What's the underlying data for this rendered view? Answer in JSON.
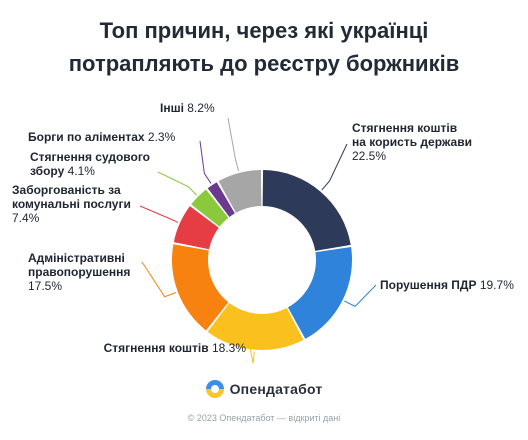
{
  "chart_data": {
    "type": "pie",
    "title_lines": [
      "Топ причин, через які українці",
      "потрапляють до реєстру боржників"
    ],
    "slices": [
      {
        "label_lines": [
          "Стягнення коштів",
          "на користь держави"
        ],
        "value_text": "22.5%",
        "value": 22.5,
        "color": "#2d3a5a"
      },
      {
        "label_lines": [
          "Порушення ПДР"
        ],
        "value_text": "19.7%",
        "value": 19.7,
        "color": "#2f83db"
      },
      {
        "label_lines": [
          "Стягнення коштів"
        ],
        "value_text": "18.3%",
        "value": 18.3,
        "color": "#f9c01e"
      },
      {
        "label_lines": [
          "Адміністративні",
          "правопорушення"
        ],
        "value_text": "17.5%",
        "value": 17.5,
        "color": "#f7820f"
      },
      {
        "label_lines": [
          "Заборгованість за",
          "комунальні послуги"
        ],
        "value_text": "7.4%",
        "value": 7.4,
        "color": "#e63c44"
      },
      {
        "label_lines": [
          "Стягнення судового",
          "збору"
        ],
        "value_text": "4.1%",
        "value": 4.1,
        "color": "#8ac83c"
      },
      {
        "label_lines": [
          "Борги по аліментах"
        ],
        "value_text": "2.3%",
        "value": 2.3,
        "color": "#6b3a8f"
      },
      {
        "label_lines": [
          "Інші"
        ],
        "value_text": "8.2%",
        "value": 8.2,
        "color": "#a6a6a6"
      }
    ]
  },
  "brand": {
    "name": "Опендатабот"
  },
  "footer": "© 2023 Опендатабот — відкриті дані"
}
